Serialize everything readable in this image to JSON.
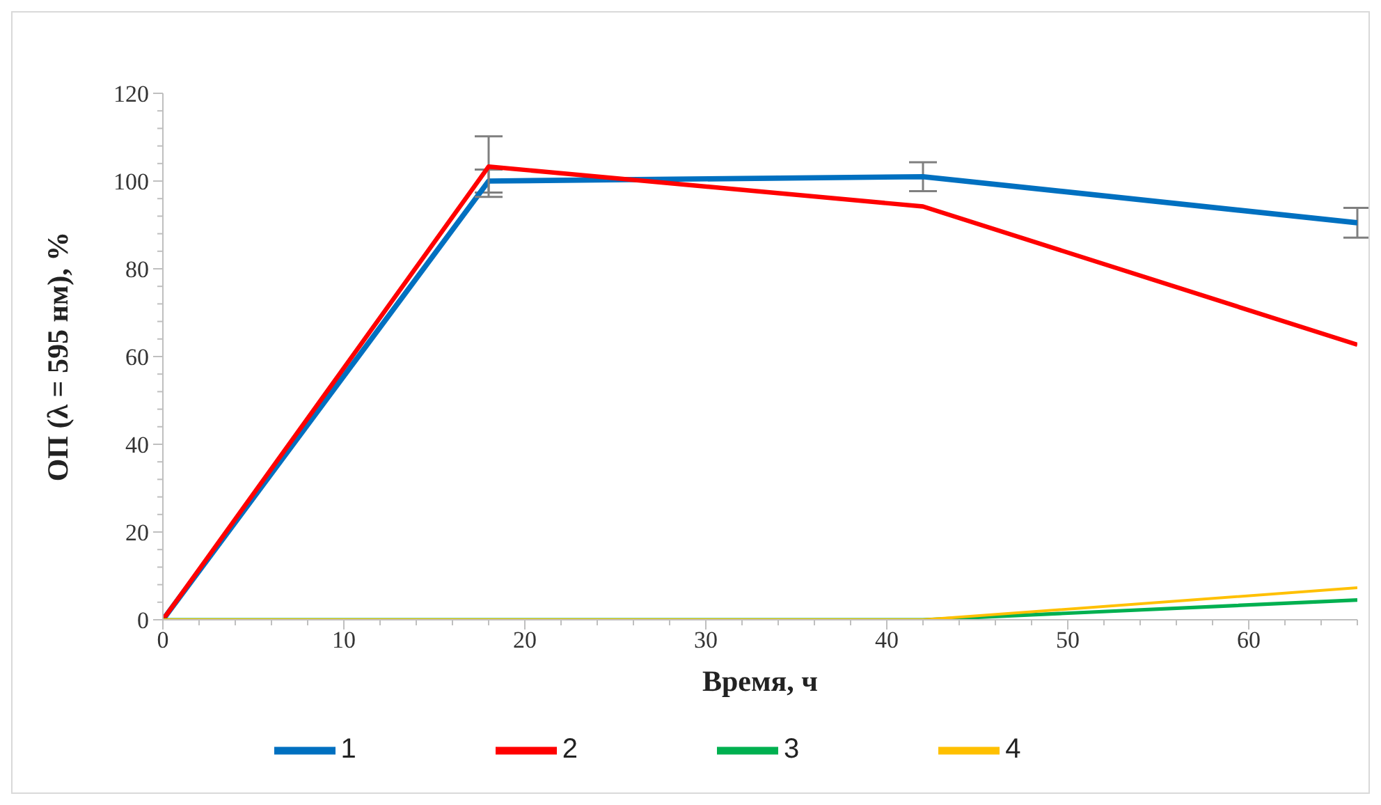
{
  "chart_data": {
    "type": "line",
    "xlabel": "Время, ч",
    "ylabel": "ОП (λ = 595 нм), %",
    "x": [
      0,
      18,
      42,
      66
    ],
    "series": [
      {
        "name": "1",
        "color": "#0070c0",
        "values": [
          0,
          100,
          101,
          90.5
        ],
        "errors": [
          null,
          2.6,
          3.3,
          3.4
        ]
      },
      {
        "name": "2",
        "color": "#ff0000",
        "values": [
          0,
          103.3,
          94.2,
          62.7
        ],
        "errors": [
          null,
          6.9,
          null,
          null
        ]
      },
      {
        "name": "3",
        "color": "#00b050",
        "values": [
          0,
          0,
          0,
          4.5
        ]
      },
      {
        "name": "4",
        "color": "#ffc000",
        "values": [
          0,
          0,
          0,
          7.3
        ]
      }
    ],
    "xlim": [
      0,
      66
    ],
    "xticks": [
      0,
      {
        "value": 2,
        "label": null
      },
      {
        "value": 4,
        "label": null
      },
      {
        "value": 6,
        "label": null
      },
      {
        "value": 8,
        "label": null
      },
      10,
      {
        "value": 12,
        "label": null
      },
      {
        "value": 14,
        "label": null
      },
      {
        "value": 16,
        "label": null
      },
      {
        "value": 18,
        "label": null
      },
      20,
      {
        "value": 22,
        "label": null
      },
      {
        "value": 24,
        "label": null
      },
      {
        "value": 26,
        "label": null
      },
      {
        "value": 28,
        "label": null
      },
      30,
      {
        "value": 32,
        "label": null
      },
      {
        "value": 34,
        "label": null
      },
      {
        "value": 36,
        "label": null
      },
      {
        "value": 38,
        "label": null
      },
      40,
      {
        "value": 42,
        "label": null
      },
      {
        "value": 44,
        "label": null
      },
      {
        "value": 46,
        "label": null
      },
      {
        "value": 48,
        "label": null
      },
      50,
      {
        "value": 52,
        "label": null
      },
      {
        "value": 54,
        "label": null
      },
      {
        "value": 56,
        "label": null
      },
      {
        "value": 58,
        "label": null
      },
      60,
      {
        "value": 62,
        "label": null
      },
      {
        "value": 64,
        "label": null
      },
      {
        "value": 66,
        "label": null
      }
    ],
    "ylim": [
      0,
      120
    ],
    "yticks": [
      0,
      {
        "value": 4,
        "label": null
      },
      {
        "value": 8,
        "label": null
      },
      {
        "value": 12,
        "label": null
      },
      {
        "value": 16,
        "label": null
      },
      20,
      {
        "value": 24,
        "label": null
      },
      {
        "value": 28,
        "label": null
      },
      {
        "value": 32,
        "label": null
      },
      {
        "value": 36,
        "label": null
      },
      40,
      {
        "value": 44,
        "label": null
      },
      {
        "value": 48,
        "label": null
      },
      {
        "value": 52,
        "label": null
      },
      {
        "value": 56,
        "label": null
      },
      60,
      {
        "value": 64,
        "label": null
      },
      {
        "value": 68,
        "label": null
      },
      {
        "value": 72,
        "label": null
      },
      {
        "value": 76,
        "label": null
      },
      80,
      {
        "value": 84,
        "label": null
      },
      {
        "value": 88,
        "label": null
      },
      {
        "value": 92,
        "label": null
      },
      {
        "value": 96,
        "label": null
      },
      100,
      {
        "value": 104,
        "label": null
      },
      {
        "value": 108,
        "label": null
      },
      {
        "value": 112,
        "label": null
      },
      {
        "value": 116,
        "label": null
      },
      120
    ],
    "grid": false,
    "legend": "bottom",
    "marker": "none",
    "line_style": "solid"
  }
}
